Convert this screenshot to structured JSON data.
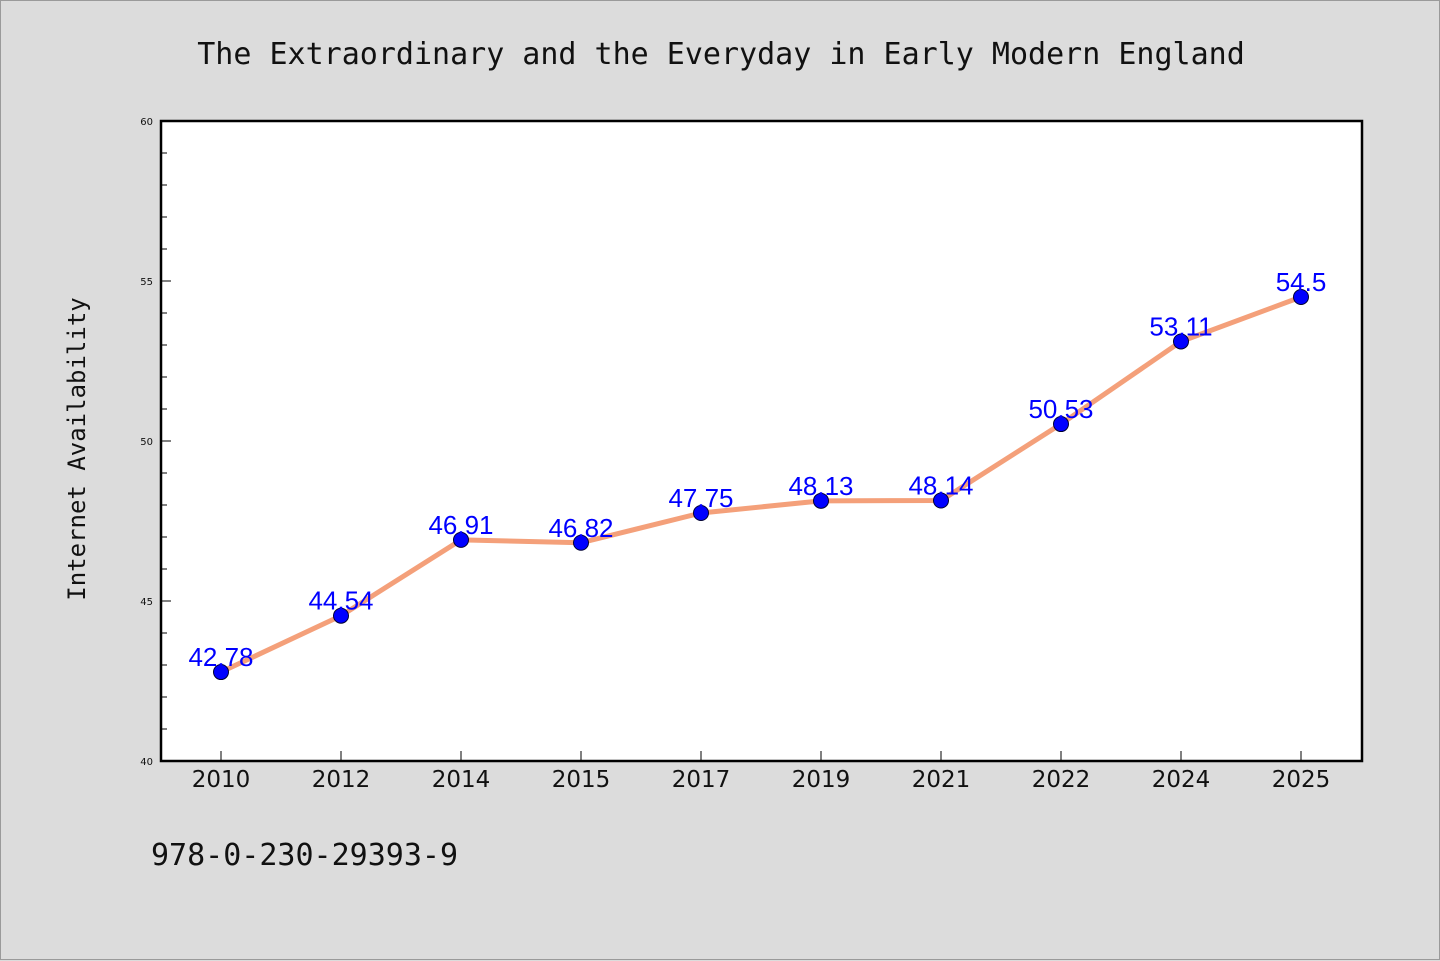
{
  "page": {
    "isbn": "978-0-230-29393-9"
  },
  "colors": {
    "background": "#dcdcdc",
    "plot_background": "#ffffff",
    "line": "#f4a07a",
    "marker": "#0000ff",
    "label": "#0000ff"
  },
  "chart_data": {
    "type": "line",
    "title": "The Extraordinary and the Everyday in Early Modern England",
    "xlabel": "",
    "ylabel": "Internet Availability",
    "categories": [
      "2010",
      "2012",
      "2014",
      "2015",
      "2017",
      "2019",
      "2021",
      "2022",
      "2024",
      "2025"
    ],
    "series": [
      {
        "values": [
          42.78,
          44.54,
          46.91,
          46.82,
          47.75,
          48.13,
          48.14,
          50.53,
          53.11,
          54.5
        ],
        "labels": [
          "42.78",
          "44.54",
          "46.91",
          "46.82",
          "47.75",
          "48.13",
          "48.14",
          "50.53",
          "53.11",
          "54.5"
        ]
      }
    ],
    "ylim": [
      40,
      60
    ],
    "yticks": [
      "40",
      "45",
      "50",
      "55",
      "60"
    ],
    "yminor_step": 1,
    "grid": false,
    "legend": "none",
    "markers": true
  }
}
